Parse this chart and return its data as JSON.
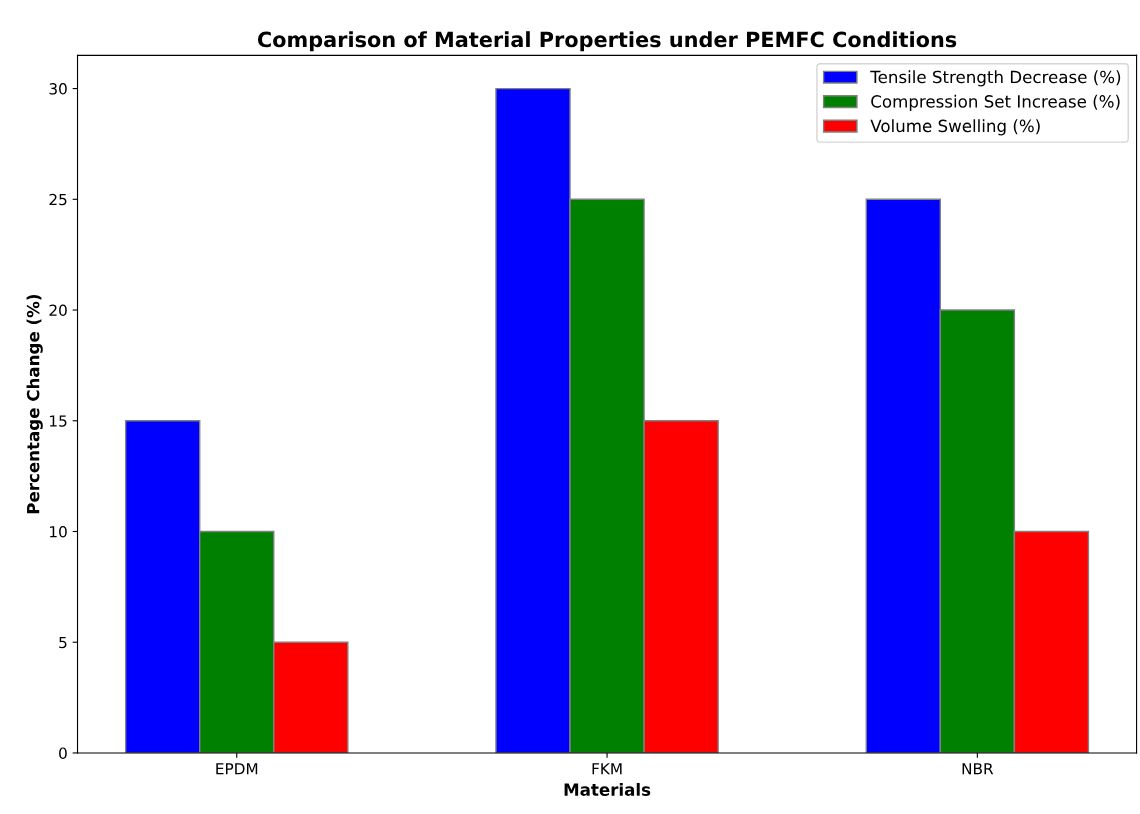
{
  "chart_data": {
    "type": "bar",
    "title": "Comparison of Material Properties under PEMFC Conditions",
    "xlabel": "Materials",
    "ylabel": "Percentage Change (%)",
    "categories": [
      "EPDM",
      "FKM",
      "NBR"
    ],
    "series": [
      {
        "name": "Tensile Strength Decrease (%)",
        "color": "#0000ff",
        "values": [
          15,
          30,
          25
        ]
      },
      {
        "name": "Compression Set Increase (%)",
        "color": "#008000",
        "values": [
          10,
          25,
          20
        ]
      },
      {
        "name": "Volume Swelling (%)",
        "color": "#ff0000",
        "values": [
          5,
          15,
          10
        ]
      }
    ],
    "ylim": [
      0,
      31.5
    ],
    "yticks": [
      0,
      5,
      10,
      15,
      20,
      25,
      30
    ],
    "grid": false,
    "legend": "top right"
  }
}
